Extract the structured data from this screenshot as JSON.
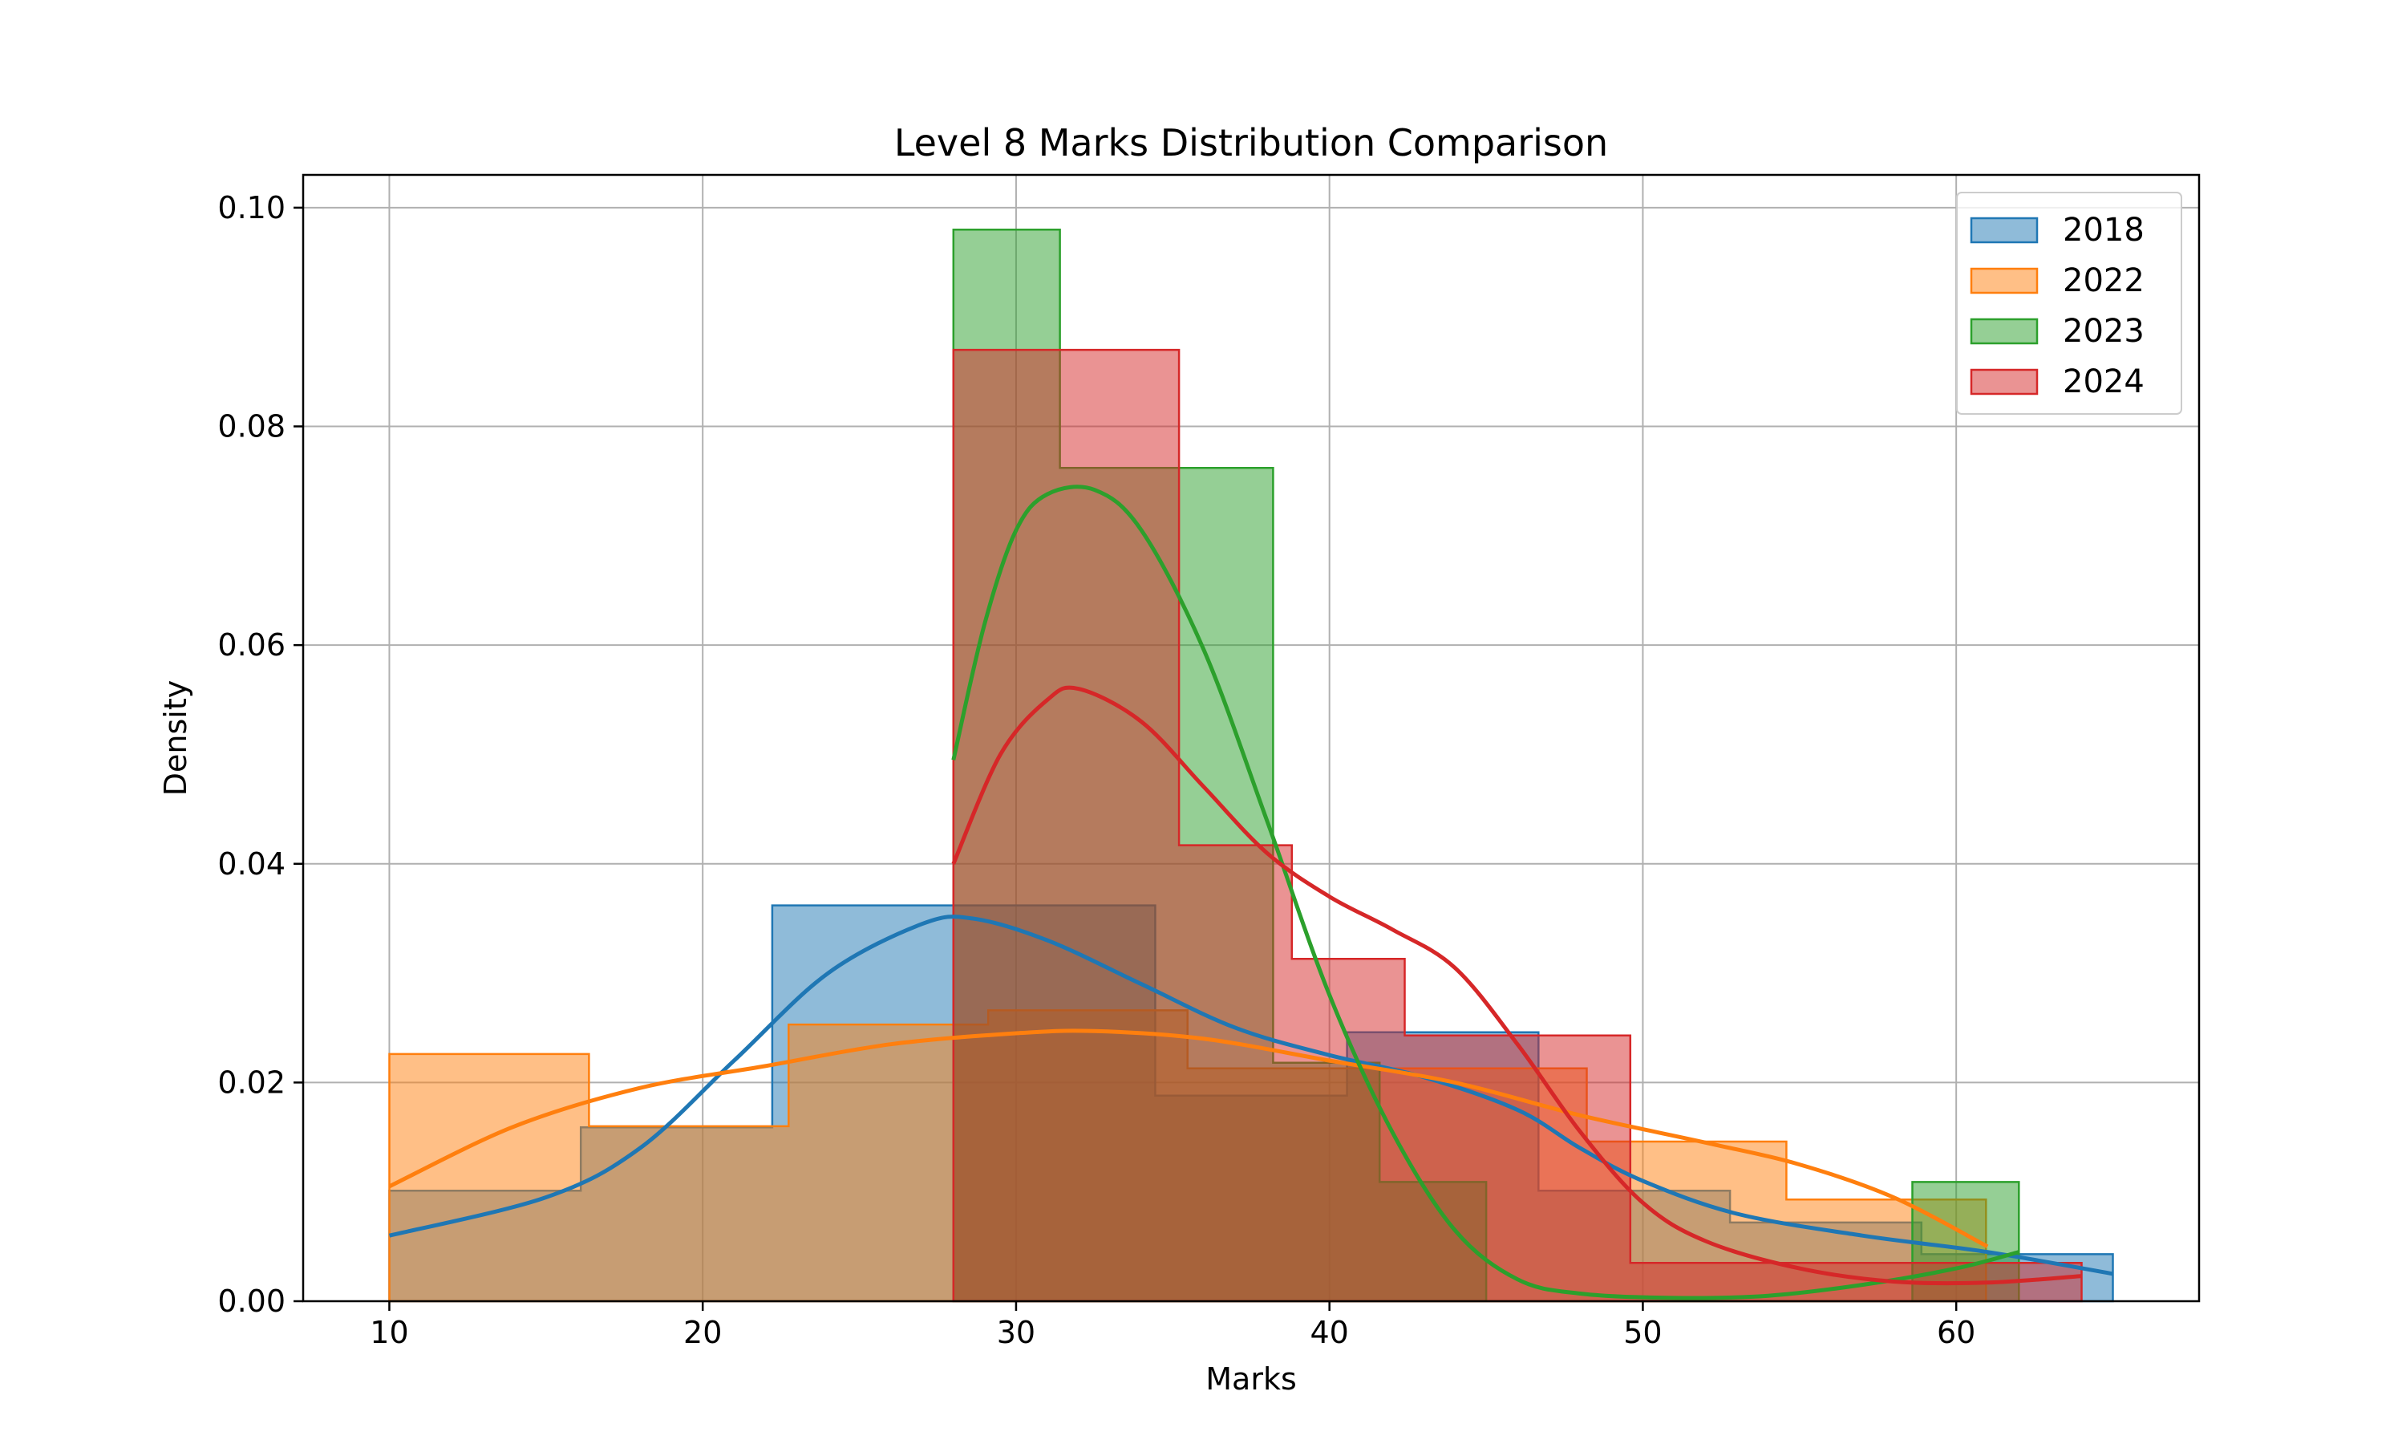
{
  "chart_data": {
    "type": "histogram",
    "title": "Level 8 Marks Distribution Comparison",
    "xlabel": "Marks",
    "ylabel": "Density",
    "xlim": [
      7.25,
      67.75
    ],
    "ylim": [
      0,
      0.103
    ],
    "x_ticks": [
      10,
      20,
      30,
      40,
      50,
      60
    ],
    "x_tick_labels": [
      "10",
      "20",
      "30",
      "40",
      "50",
      "60"
    ],
    "y_ticks": [
      0,
      0.02,
      0.04,
      0.06,
      0.08,
      0.1
    ],
    "y_tick_labels": [
      "0.00",
      "0.02",
      "0.04",
      "0.06",
      "0.08",
      "0.10"
    ],
    "grid": true,
    "legend_position": "top-right",
    "series": [
      {
        "name": "2018",
        "color": "#1f77b4",
        "bin_edges": [
          10,
          16.11,
          22.22,
          28.33,
          34.44,
          40.56,
          46.67,
          52.78,
          58.89,
          65
        ],
        "densities": [
          0.0101,
          0.0159,
          0.0362,
          0.0362,
          0.0188,
          0.0246,
          0.0101,
          0.0072,
          0.0043
        ],
        "kde": [
          [
            10,
            0.006
          ],
          [
            15,
            0.0095
          ],
          [
            18,
            0.014
          ],
          [
            21,
            0.022
          ],
          [
            24,
            0.03
          ],
          [
            27,
            0.0345
          ],
          [
            28.6,
            0.035
          ],
          [
            31,
            0.033
          ],
          [
            34,
            0.029
          ],
          [
            37,
            0.025
          ],
          [
            40,
            0.0225
          ],
          [
            43,
            0.0205
          ],
          [
            46,
            0.0175
          ],
          [
            48,
            0.014
          ],
          [
            50,
            0.011
          ],
          [
            53,
            0.008
          ],
          [
            57,
            0.006
          ],
          [
            61,
            0.0045
          ],
          [
            65,
            0.0025
          ]
        ]
      },
      {
        "name": "2022",
        "color": "#ff7f0e",
        "bin_edges": [
          10,
          16.37,
          22.74,
          29.11,
          35.47,
          41.84,
          48.21,
          54.58,
          60.95
        ],
        "densities": [
          0.0226,
          0.016,
          0.0253,
          0.0266,
          0.0213,
          0.0213,
          0.0146,
          0.0093
        ],
        "kde": [
          [
            10,
            0.0105
          ],
          [
            14,
            0.016
          ],
          [
            18,
            0.0195
          ],
          [
            22,
            0.0215
          ],
          [
            26,
            0.0235
          ],
          [
            30,
            0.0245
          ],
          [
            32.5,
            0.0247
          ],
          [
            36,
            0.024
          ],
          [
            40,
            0.022
          ],
          [
            44,
            0.02
          ],
          [
            48,
            0.017
          ],
          [
            52,
            0.0145
          ],
          [
            55,
            0.0125
          ],
          [
            58,
            0.0095
          ],
          [
            61,
            0.005
          ]
        ]
      },
      {
        "name": "2023",
        "color": "#2ca02c",
        "bin_edges": [
          28,
          31.4,
          34.8,
          38.2,
          41.6,
          45,
          48.4,
          51.8,
          55.2,
          58.6,
          62
        ],
        "densities": [
          0.098,
          0.0762,
          0.0762,
          0.0218,
          0.0109,
          0,
          0,
          0,
          0,
          0.0109
        ],
        "kde": [
          [
            28,
            0.0495
          ],
          [
            29,
            0.062
          ],
          [
            30,
            0.0705
          ],
          [
            31,
            0.0738
          ],
          [
            32.5,
            0.0742
          ],
          [
            34,
            0.0705
          ],
          [
            36,
            0.0595
          ],
          [
            38,
            0.044
          ],
          [
            40,
            0.028
          ],
          [
            42,
            0.0155
          ],
          [
            44,
            0.0065
          ],
          [
            46,
            0.002
          ],
          [
            48,
            0.0007
          ],
          [
            51,
            0.0003
          ],
          [
            54,
            0.0005
          ],
          [
            57,
            0.0015
          ],
          [
            60,
            0.003
          ],
          [
            62,
            0.0045
          ]
        ]
      },
      {
        "name": "2024",
        "color": "#d62728",
        "bin_edges": [
          28,
          31.6,
          35.2,
          38.8,
          42.4,
          46,
          49.6,
          53.2,
          56.8,
          60.4,
          64
        ],
        "densities": [
          0.087,
          0.087,
          0.0417,
          0.0313,
          0.0243,
          0.0243,
          0.0035,
          0.0035,
          0.0035,
          0.0035
        ],
        "kde": [
          [
            28,
            0.04
          ],
          [
            29.5,
            0.05
          ],
          [
            31,
            0.055
          ],
          [
            32,
            0.056
          ],
          [
            34,
            0.053
          ],
          [
            36,
            0.047
          ],
          [
            38,
            0.041
          ],
          [
            40,
            0.037
          ],
          [
            42,
            0.034
          ],
          [
            44,
            0.0305
          ],
          [
            46,
            0.0235
          ],
          [
            48,
            0.0155
          ],
          [
            50,
            0.009
          ],
          [
            52,
            0.0055
          ],
          [
            55,
            0.003
          ],
          [
            58,
            0.0018
          ],
          [
            61,
            0.0017
          ],
          [
            64,
            0.0023
          ]
        ]
      }
    ]
  }
}
